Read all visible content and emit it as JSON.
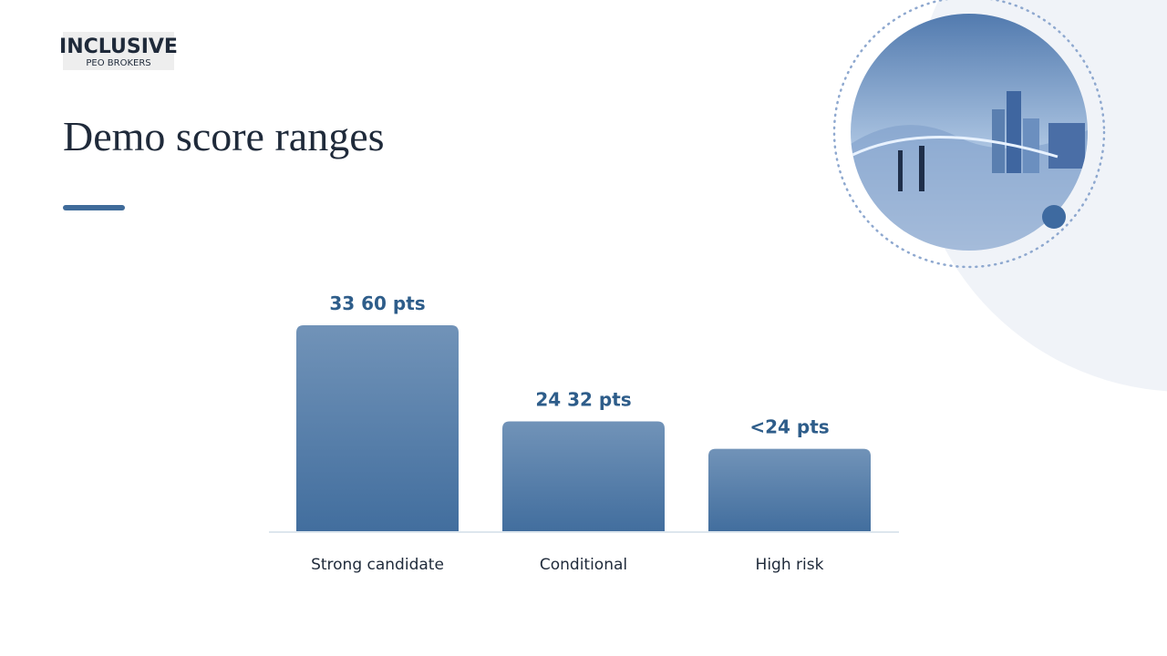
{
  "logo": {
    "line1": "INCLUSIVE",
    "line2": "PEO BROKERS"
  },
  "chart_data": {
    "type": "bar",
    "title": "Demo score ranges",
    "categories": [
      "Strong candidate",
      "Conditional",
      "High risk"
    ],
    "values": [
      60,
      32,
      24
    ],
    "value_labels": [
      "33 60 pts",
      "24 32 pts",
      "<24 pts"
    ],
    "ylim": [
      0,
      60
    ],
    "color": "#4a76a5"
  }
}
